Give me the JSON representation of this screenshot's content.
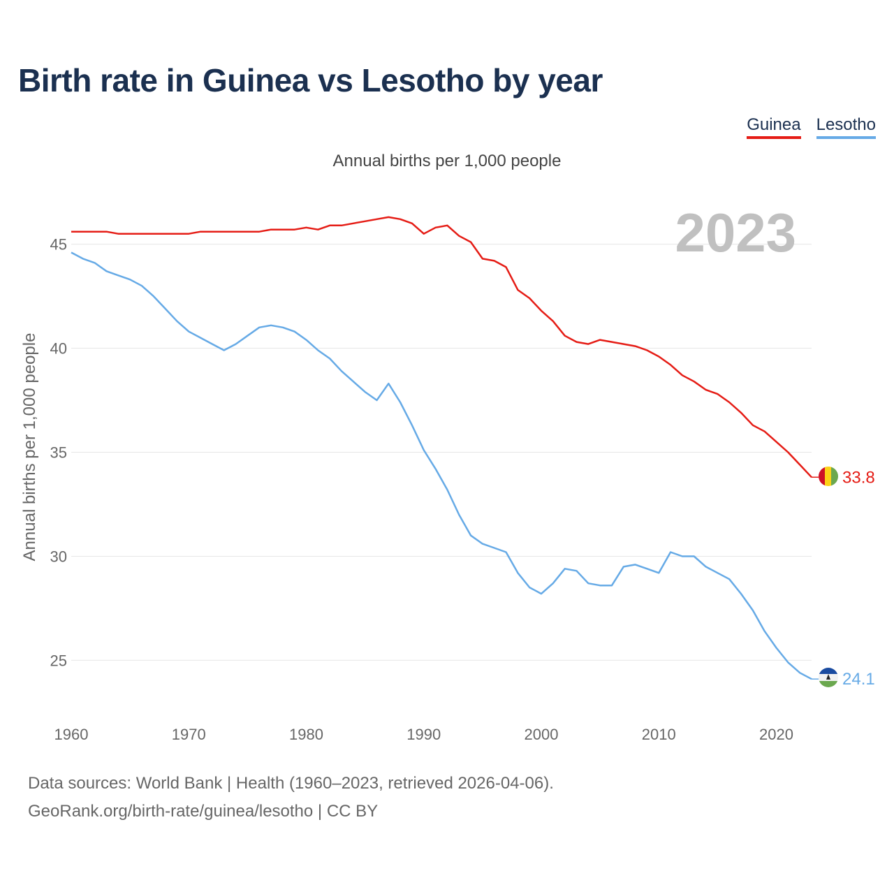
{
  "title": "Birth rate in Guinea vs Lesotho by year",
  "legend": [
    {
      "name": "Guinea",
      "color": "#e51c15"
    },
    {
      "name": "Lesotho",
      "color": "#66aae6"
    }
  ],
  "footer": {
    "line1": "Data sources: World Bank | Health (1960–2023, retrieved 2026-04-06).",
    "line2": "GeoRank.org/birth-rate/guinea/lesotho | CC BY"
  },
  "chart_data": {
    "type": "line",
    "title": "Birth rate in Guinea vs Lesotho by year",
    "subtitle": "Annual births per 1,000 people",
    "xlabel": "",
    "ylabel": "Annual births per 1,000 people",
    "highlight_year": "2023",
    "xlim": [
      1960,
      2023
    ],
    "ylim": [
      23,
      47
    ],
    "grid": true,
    "x_ticks": [
      1960,
      1970,
      1980,
      1990,
      2000,
      2010,
      2020
    ],
    "y_ticks": [
      25,
      30,
      35,
      40,
      45
    ],
    "x": [
      1960,
      1961,
      1962,
      1963,
      1964,
      1965,
      1966,
      1967,
      1968,
      1969,
      1970,
      1971,
      1972,
      1973,
      1974,
      1975,
      1976,
      1977,
      1978,
      1979,
      1980,
      1981,
      1982,
      1983,
      1984,
      1985,
      1986,
      1987,
      1988,
      1989,
      1990,
      1991,
      1992,
      1993,
      1994,
      1995,
      1996,
      1997,
      1998,
      1999,
      2000,
      2001,
      2002,
      2003,
      2004,
      2005,
      2006,
      2007,
      2008,
      2009,
      2010,
      2011,
      2012,
      2013,
      2014,
      2015,
      2016,
      2017,
      2018,
      2019,
      2020,
      2021,
      2022,
      2023
    ],
    "series": [
      {
        "name": "Guinea",
        "color": "#e51c15",
        "end_label": "33.8",
        "values": [
          45.6,
          45.6,
          45.6,
          45.6,
          45.5,
          45.5,
          45.5,
          45.5,
          45.5,
          45.5,
          45.5,
          45.6,
          45.6,
          45.6,
          45.6,
          45.6,
          45.6,
          45.7,
          45.7,
          45.7,
          45.8,
          45.7,
          45.9,
          45.9,
          46.0,
          46.1,
          46.2,
          46.3,
          46.2,
          46.0,
          45.5,
          45.8,
          45.9,
          45.4,
          45.1,
          44.3,
          44.2,
          43.9,
          42.8,
          42.4,
          41.8,
          41.3,
          40.6,
          40.3,
          40.2,
          40.4,
          40.3,
          40.2,
          40.1,
          39.9,
          39.6,
          39.2,
          38.7,
          38.4,
          38.0,
          37.8,
          37.4,
          36.9,
          36.3,
          36.0,
          35.5,
          35.0,
          34.4,
          33.8
        ]
      },
      {
        "name": "Lesotho",
        "color": "#66aae6",
        "end_label": "24.1",
        "values": [
          44.6,
          44.3,
          44.1,
          43.7,
          43.5,
          43.3,
          43.0,
          42.5,
          41.9,
          41.3,
          40.8,
          40.5,
          40.2,
          39.9,
          40.2,
          40.6,
          41.0,
          41.1,
          41.0,
          40.8,
          40.4,
          39.9,
          39.5,
          38.9,
          38.4,
          37.9,
          37.5,
          38.3,
          37.4,
          36.3,
          35.1,
          34.2,
          33.2,
          32.0,
          31.0,
          30.6,
          30.4,
          30.2,
          29.2,
          28.5,
          28.2,
          28.7,
          29.4,
          29.3,
          28.7,
          28.6,
          28.6,
          29.5,
          29.6,
          29.4,
          29.2,
          30.2,
          30.0,
          30.0,
          29.5,
          29.2,
          28.9,
          28.2,
          27.4,
          26.4,
          25.6,
          24.9,
          24.4,
          24.1
        ]
      }
    ]
  }
}
